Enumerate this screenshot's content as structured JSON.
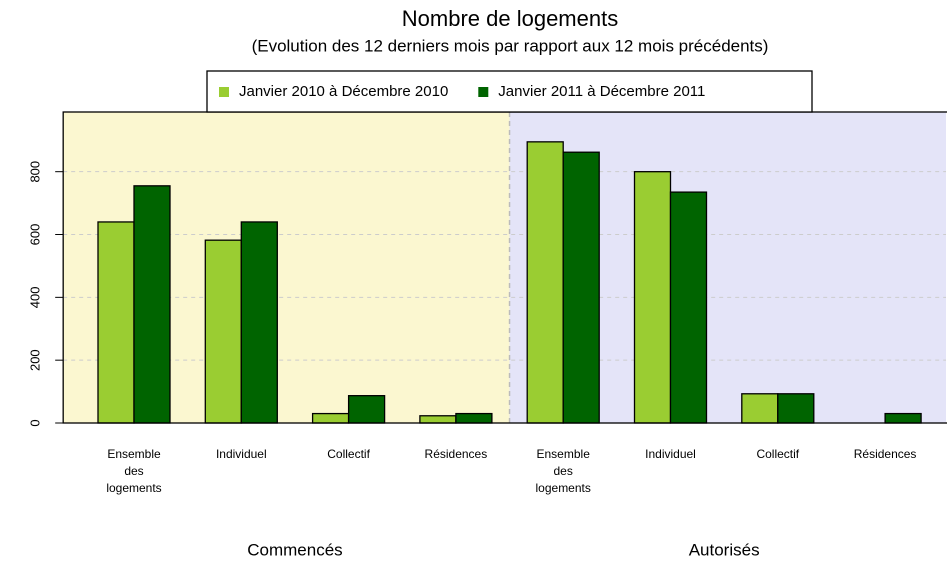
{
  "chart_data": {
    "type": "bar",
    "title": "Nombre de logements",
    "subtitle": "(Evolution des 12 derniers mois par rapport aux 12 mois précédents)",
    "categories": [
      "Ensemble\ndes\nlogements",
      "Individuel",
      "Collectif",
      "Résidences",
      "Ensemble\ndes\nlogements",
      "Individuel",
      "Collectif",
      "Résidences"
    ],
    "panels": [
      {
        "label": "Commencés",
        "color": "#fbf7d0"
      },
      {
        "label": "Autorisés",
        "color": "#e4e4f8"
      }
    ],
    "series": [
      {
        "name": "Janvier 2010 à Décembre 2010",
        "color": "#9acd32",
        "values": [
          640,
          582,
          30,
          23,
          895,
          800,
          93,
          0
        ]
      },
      {
        "name": "Janvier 2011 à Décembre 2011",
        "color": "#006400",
        "values": [
          755,
          640,
          87,
          30,
          862,
          735,
          93,
          30
        ]
      }
    ],
    "ylim": [
      0,
      990
    ],
    "yticks": [
      0,
      200,
      400,
      600,
      800
    ],
    "grid": true,
    "legend": "top"
  }
}
